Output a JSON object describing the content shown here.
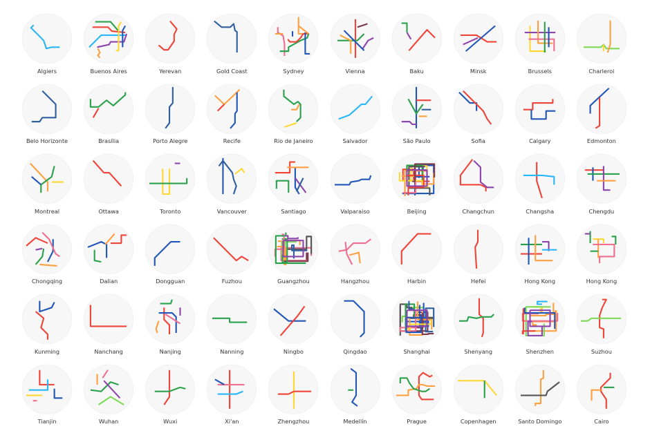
{
  "palette": {
    "red": "#ef4438",
    "green": "#2ba14b",
    "blue": "#2156b8",
    "cyan": "#29b6f6",
    "yellow": "#fdd835",
    "orange": "#ffa040",
    "purple": "#8e44ad",
    "pink": "#ef6f8f",
    "navy": "#2f5f9e",
    "lightgreen": "#7ed957",
    "brown": "#7b3b4b",
    "grey": "#555555",
    "background": "#f7f7f7"
  },
  "cities": [
    {
      "name": "Algiers"
    },
    {
      "name": "Buenos Aires"
    },
    {
      "name": "Yerevan"
    },
    {
      "name": "Gold Coast"
    },
    {
      "name": "Sydney"
    },
    {
      "name": "Vienna"
    },
    {
      "name": "Baku"
    },
    {
      "name": "Minsk"
    },
    {
      "name": "Brussels"
    },
    {
      "name": "Charleroi"
    },
    {
      "name": "Belo Horizonte"
    },
    {
      "name": "Brasília"
    },
    {
      "name": "Porto Alegre"
    },
    {
      "name": "Recife"
    },
    {
      "name": "Rio de Janeiro"
    },
    {
      "name": "Salvador"
    },
    {
      "name": "São Paulo"
    },
    {
      "name": "Sofia"
    },
    {
      "name": "Calgary"
    },
    {
      "name": "Edmonton"
    },
    {
      "name": "Montreal"
    },
    {
      "name": "Ottawa"
    },
    {
      "name": "Toronto"
    },
    {
      "name": "Vancouver"
    },
    {
      "name": "Santiago"
    },
    {
      "name": "Valparaiso"
    },
    {
      "name": "Beijing"
    },
    {
      "name": "Changchun"
    },
    {
      "name": "Changsha"
    },
    {
      "name": "Chengdu"
    },
    {
      "name": "Chongqing"
    },
    {
      "name": "Dalian"
    },
    {
      "name": "Dongguan"
    },
    {
      "name": "Fuzhou"
    },
    {
      "name": "Guangzhou"
    },
    {
      "name": "Hangzhou"
    },
    {
      "name": "Harbin"
    },
    {
      "name": "Hefei"
    },
    {
      "name": "Hong Kong"
    },
    {
      "name": "Hong Kong"
    },
    {
      "name": "Kunming"
    },
    {
      "name": "Nanchang"
    },
    {
      "name": "Nanjing"
    },
    {
      "name": "Nanning"
    },
    {
      "name": "Ningbo"
    },
    {
      "name": "Qingdao"
    },
    {
      "name": "Shanghai"
    },
    {
      "name": "Shenyang"
    },
    {
      "name": "Shenzhen"
    },
    {
      "name": "Suzhou"
    },
    {
      "name": "Tianjin"
    },
    {
      "name": "Wuhan"
    },
    {
      "name": "Wuxi"
    },
    {
      "name": "Xi'an"
    },
    {
      "name": "Zhengzhou"
    },
    {
      "name": "Medellín"
    },
    {
      "name": "Prague"
    },
    {
      "name": "Copenhagen"
    },
    {
      "name": "Santo Domingo"
    },
    {
      "name": "Cairo"
    }
  ]
}
